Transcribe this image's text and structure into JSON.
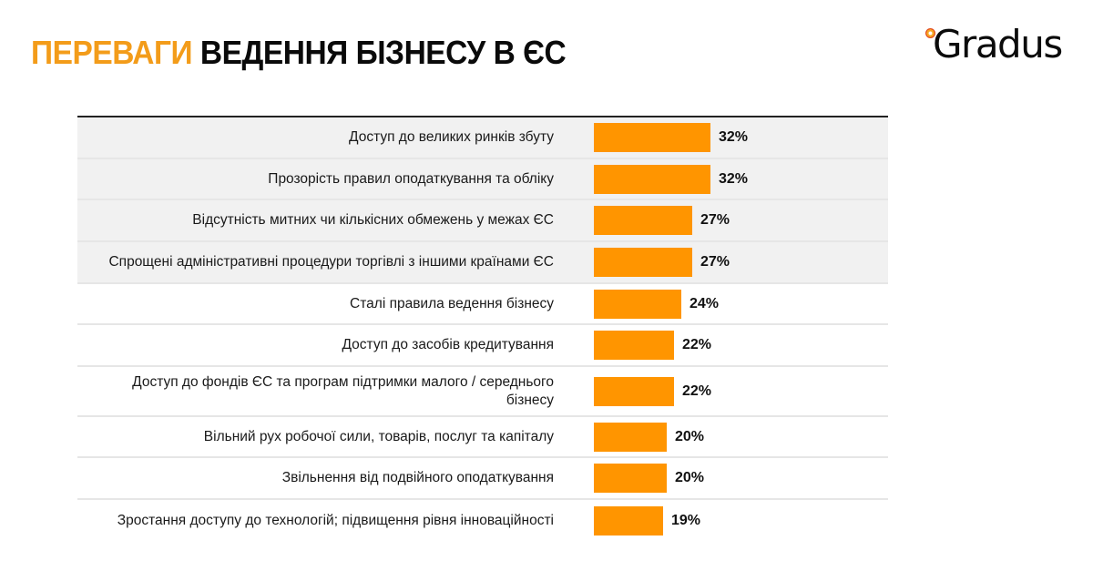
{
  "header": {
    "title_accent": "ПЕРЕВАГИ",
    "title_rest": "ВЕДЕННЯ БІЗНЕСУ В ЄС",
    "logo_text": "Gradus"
  },
  "colors": {
    "bar": "#FF9500",
    "title_accent": "#F39C1A",
    "shaded_row": "#F1F1F1"
  },
  "chart_data": {
    "type": "bar",
    "orientation": "horizontal",
    "title": "ПЕРЕВАГИ ВЕДЕННЯ БІЗНЕСУ В ЄС",
    "xlabel": "",
    "ylabel": "",
    "grid": false,
    "legend": null,
    "unit": "%",
    "categories": [
      "Доступ до великих ринків збуту",
      "Прозорість правил оподаткування та обліку",
      "Відсутність митних чи кількісних обмежень у межах ЄС",
      "Спрощені адміністративні процедури торгівлі з іншими країнами ЄС",
      "Сталі правила ведення бізнесу",
      "Доступ до засобів кредитування",
      "Доступ до фондів ЄС та програм підтримки малого / середнього бізнесу",
      "Вільний рух робочої сили, товарів, послуг та капіталу",
      "Звільнення від подвійного оподаткування",
      "Зростання доступу до технологій; підвищення рівня інноваційності"
    ],
    "values": [
      32,
      32,
      27,
      27,
      24,
      22,
      22,
      20,
      20,
      19
    ],
    "value_labels": [
      "32%",
      "32%",
      "27%",
      "27%",
      "24%",
      "22%",
      "22%",
      "20%",
      "20%",
      "19%"
    ]
  }
}
